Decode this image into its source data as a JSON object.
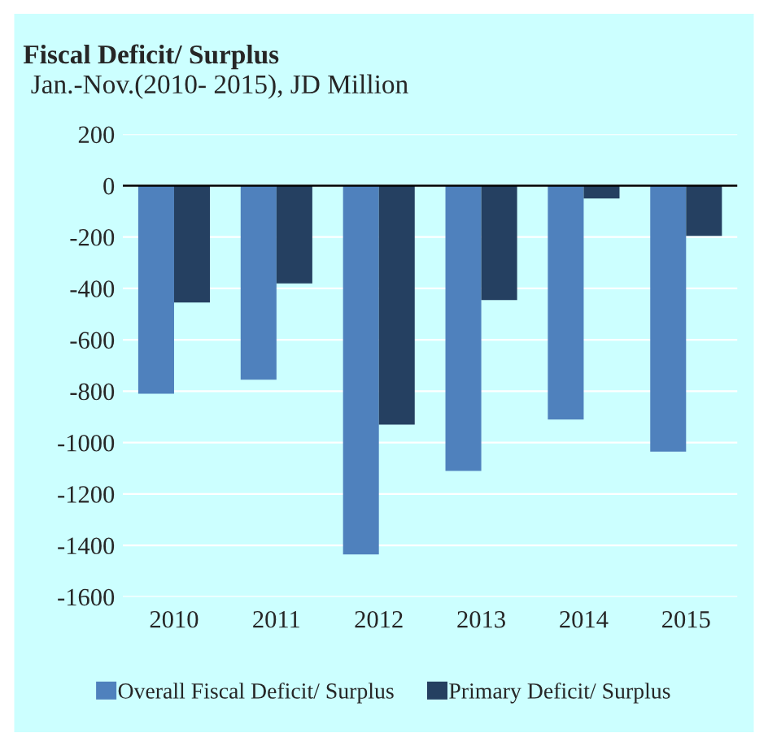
{
  "chart_data": {
    "type": "bar",
    "title": "Fiscal Deficit/ Surplus",
    "subtitle": "Jan.-Nov.(2010- 2015), JD Million",
    "categories": [
      "2010",
      "2011",
      "2012",
      "2013",
      "2014",
      "2015"
    ],
    "series": [
      {
        "name": "Overall Fiscal Deficit/ Surplus",
        "color": "#4f81bd",
        "values": [
          -810,
          -755,
          -1435,
          -1110,
          -910,
          -1035
        ]
      },
      {
        "name": "Primary Deficit/ Surplus",
        "color": "#254061",
        "values": [
          -455,
          -380,
          -930,
          -445,
          -50,
          -195
        ]
      }
    ],
    "ylim": [
      -1600,
      200
    ],
    "yticks": [
      -1600,
      -1400,
      -1200,
      -1000,
      -800,
      -600,
      -400,
      -200,
      0,
      200
    ],
    "grid": "y",
    "legend": "bottom"
  }
}
